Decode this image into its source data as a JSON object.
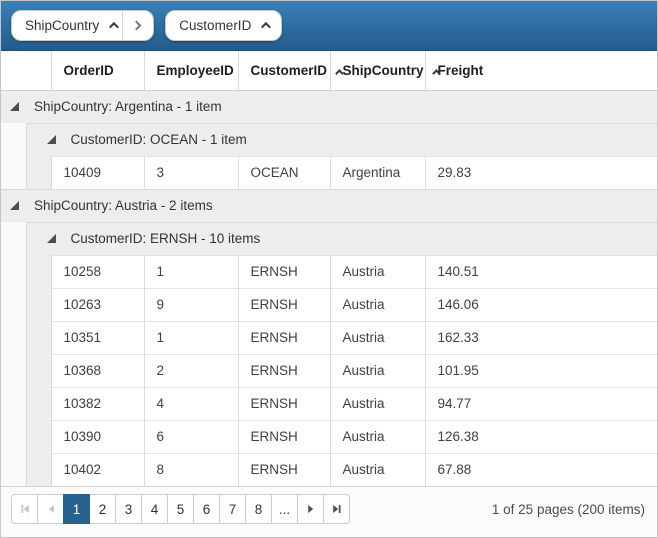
{
  "group_panel": {
    "chips": [
      {
        "label": "ShipCountry",
        "sort": "asc",
        "has_next_group_arrow": true
      },
      {
        "label": "CustomerID",
        "sort": "asc",
        "has_next_group_arrow": false
      }
    ]
  },
  "table": {
    "columns": [
      {
        "label": "OrderID",
        "sorted": false
      },
      {
        "label": "EmployeeID",
        "sorted": false
      },
      {
        "label": "CustomerID",
        "sorted": true
      },
      {
        "label": "ShipCountry",
        "sorted": true
      },
      {
        "label": "Freight",
        "sorted": false
      }
    ],
    "groups": [
      {
        "label": "ShipCountry: Argentina - 1 item",
        "subgroups": [
          {
            "label": "CustomerID: OCEAN - 1 item",
            "rows": [
              [
                "10409",
                "3",
                "OCEAN",
                "Argentina",
                "29.83"
              ]
            ]
          }
        ]
      },
      {
        "label": "ShipCountry: Austria - 2 items",
        "subgroups": [
          {
            "label": "CustomerID: ERNSH - 10 items",
            "rows": [
              [
                "10258",
                "1",
                "ERNSH",
                "Austria",
                "140.51"
              ],
              [
                "10263",
                "9",
                "ERNSH",
                "Austria",
                "146.06"
              ],
              [
                "10351",
                "1",
                "ERNSH",
                "Austria",
                "162.33"
              ],
              [
                "10368",
                "2",
                "ERNSH",
                "Austria",
                "101.95"
              ],
              [
                "10382",
                "4",
                "ERNSH",
                "Austria",
                "94.77"
              ],
              [
                "10390",
                "6",
                "ERNSH",
                "Austria",
                "126.38"
              ],
              [
                "10402",
                "8",
                "ERNSH",
                "Austria",
                "67.88"
              ]
            ]
          }
        ]
      }
    ]
  },
  "pager": {
    "pages": [
      "1",
      "2",
      "3",
      "4",
      "5",
      "6",
      "7",
      "8",
      "..."
    ],
    "current_page": "1",
    "first_disabled": true,
    "prev_disabled": true,
    "info": "1 of 25 pages (200 items)"
  },
  "icons": {
    "sort_ascending": "chevron-up",
    "group_connector": "chevron-right",
    "collapse_group": "triangle-bottom-right",
    "pager_first": "bar-left-triangle",
    "pager_prev": "triangle-left",
    "pager_next": "triangle-right",
    "pager_last": "triangle-bar-right"
  },
  "colors": {
    "group_panel_top": "#3a80b9",
    "group_panel_bottom": "#235c8c",
    "group_row_bg": "#ededed",
    "selected_page_bg": "#29618e",
    "border": "#d9d9d9"
  }
}
